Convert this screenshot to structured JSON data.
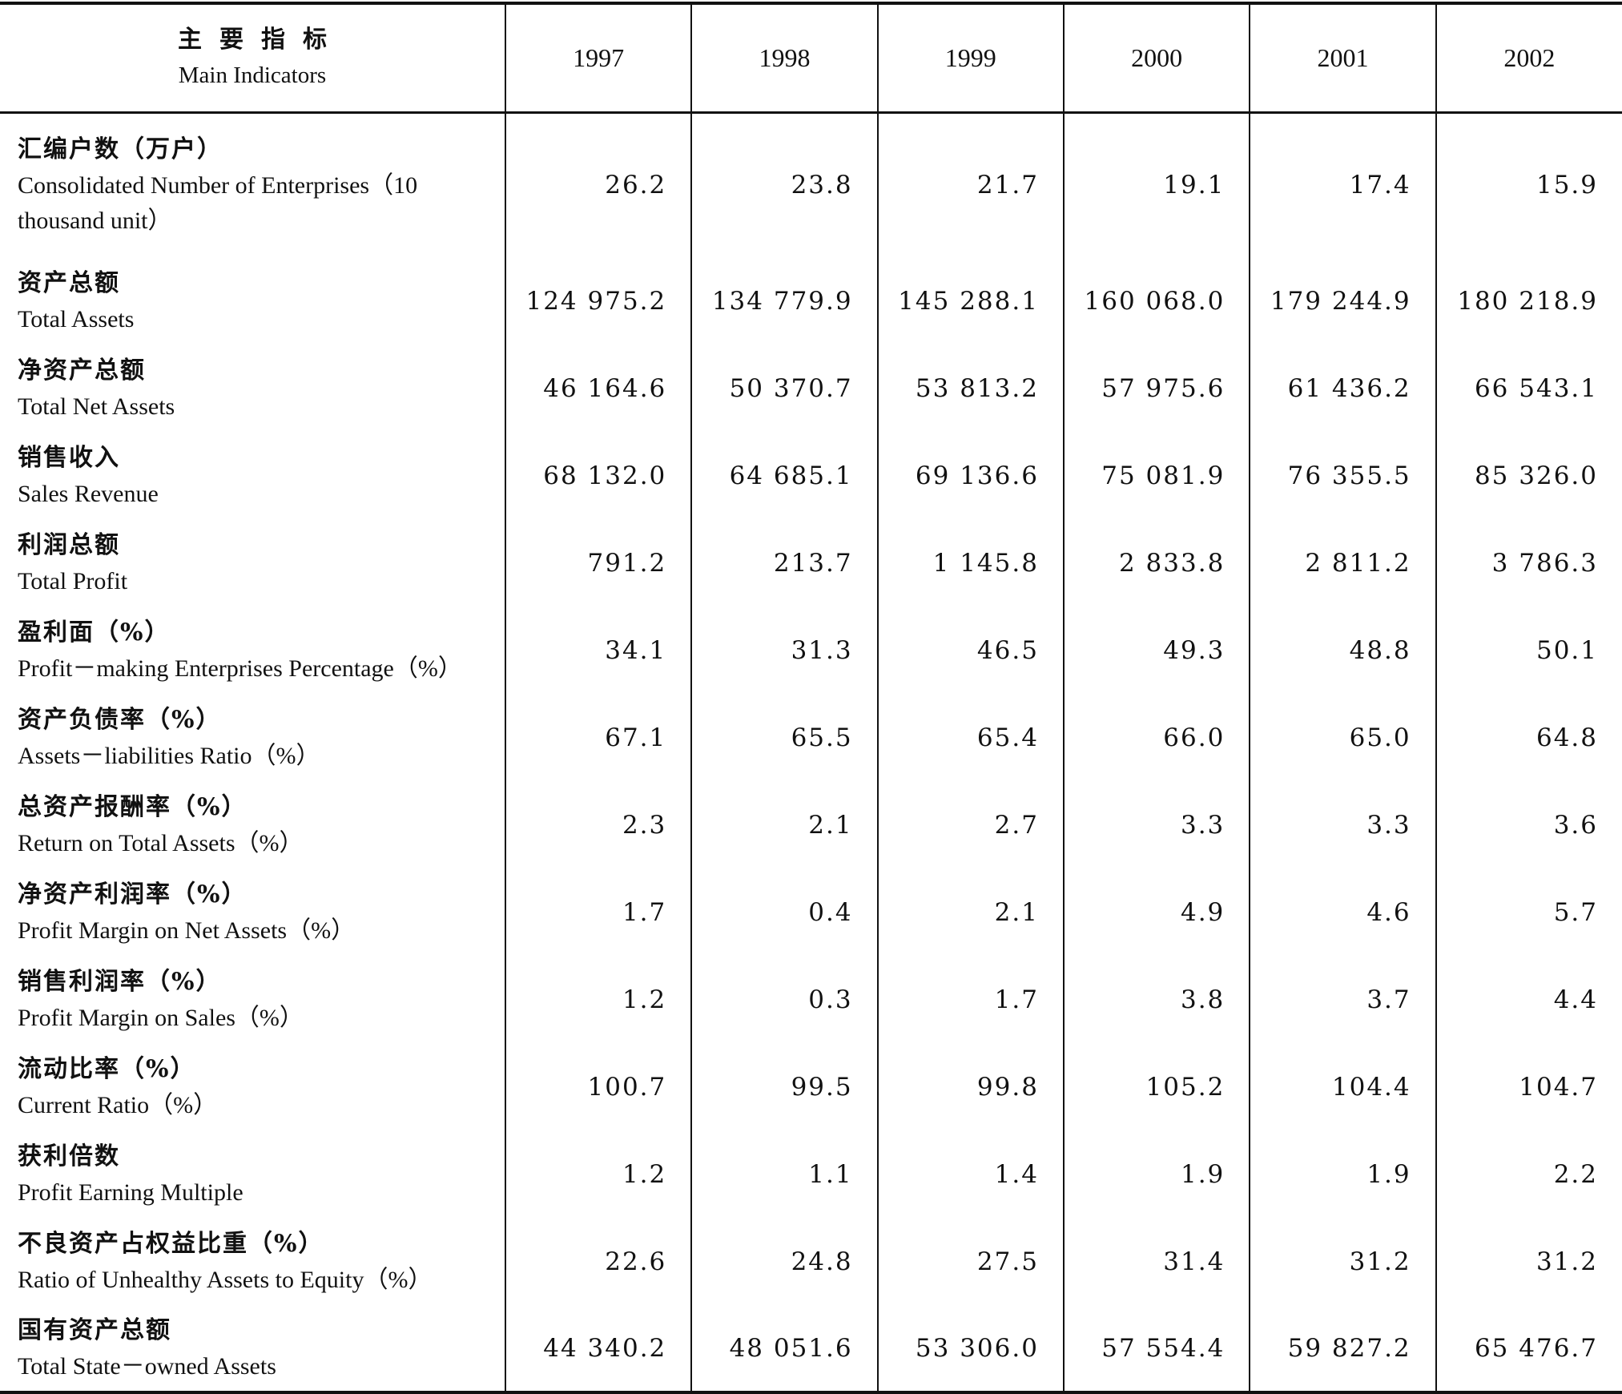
{
  "header": {
    "label_cn": "主要指标",
    "label_en": "Main Indicators",
    "years": [
      "1997",
      "1998",
      "1999",
      "2000",
      "2001",
      "2002"
    ]
  },
  "rows": [
    {
      "cn": "汇编户数（万户）",
      "en": "Consolidated Number of Enterprises（10 thousand unit）",
      "values": [
        "26.2",
        "23.8",
        "21.7",
        "19.1",
        "17.4",
        "15.9"
      ]
    },
    {
      "cn": "资产总额",
      "en": "Total Assets",
      "values": [
        "124 975.2",
        "134 779.9",
        "145 288.1",
        "160 068.0",
        "179 244.9",
        "180 218.9"
      ]
    },
    {
      "cn": "净资产总额",
      "en": "Total Net Assets",
      "values": [
        "46 164.6",
        "50 370.7",
        "53 813.2",
        "57 975.6",
        "61 436.2",
        "66 543.1"
      ]
    },
    {
      "cn": "销售收入",
      "en": "Sales Revenue",
      "values": [
        "68 132.0",
        "64 685.1",
        "69 136.6",
        "75 081.9",
        "76 355.5",
        "85 326.0"
      ]
    },
    {
      "cn": "利润总额",
      "en": "Total Profit",
      "values": [
        "791.2",
        "213.7",
        "1 145.8",
        "2 833.8",
        "2 811.2",
        "3 786.3"
      ]
    },
    {
      "cn": "盈利面（%）",
      "en": "Profit－making Enterprises Percentage（%）",
      "values": [
        "34.1",
        "31.3",
        "46.5",
        "49.3",
        "48.8",
        "50.1"
      ]
    },
    {
      "cn": "资产负债率（%）",
      "en": "Assets－liabilities Ratio（%）",
      "values": [
        "67.1",
        "65.5",
        "65.4",
        "66.0",
        "65.0",
        "64.8"
      ]
    },
    {
      "cn": "总资产报酬率（%）",
      "en": "Return on Total Assets（%）",
      "values": [
        "2.3",
        "2.1",
        "2.7",
        "3.3",
        "3.3",
        "3.6"
      ]
    },
    {
      "cn": "净资产利润率（%）",
      "en": "Profit Margin on Net Assets（%）",
      "values": [
        "1.7",
        "0.4",
        "2.1",
        "4.9",
        "4.6",
        "5.7"
      ]
    },
    {
      "cn": "销售利润率（%）",
      "en": "Profit Margin on Sales（%）",
      "values": [
        "1.2",
        "0.3",
        "1.7",
        "3.8",
        "3.7",
        "4.4"
      ]
    },
    {
      "cn": "流动比率（%）",
      "en": "Current Ratio（%）",
      "values": [
        "100.7",
        "99.5",
        "99.8",
        "105.2",
        "104.4",
        "104.7"
      ]
    },
    {
      "cn": "获利倍数",
      "en": "Profit Earning Multiple",
      "values": [
        "1.2",
        "1.1",
        "1.4",
        "1.9",
        "1.9",
        "2.2"
      ]
    },
    {
      "cn": "不良资产占权益比重（%）",
      "en": "Ratio of Unhealthy Assets to Equity（%）",
      "values": [
        "22.6",
        "24.8",
        "27.5",
        "31.4",
        "31.2",
        "31.2"
      ]
    },
    {
      "cn": "国有资产总额",
      "en": "Total State－owned Assets",
      "values": [
        "44 340.2",
        "48 051.6",
        "53 306.0",
        "57 554.4",
        "59 827.2",
        "65 476.7"
      ]
    }
  ]
}
